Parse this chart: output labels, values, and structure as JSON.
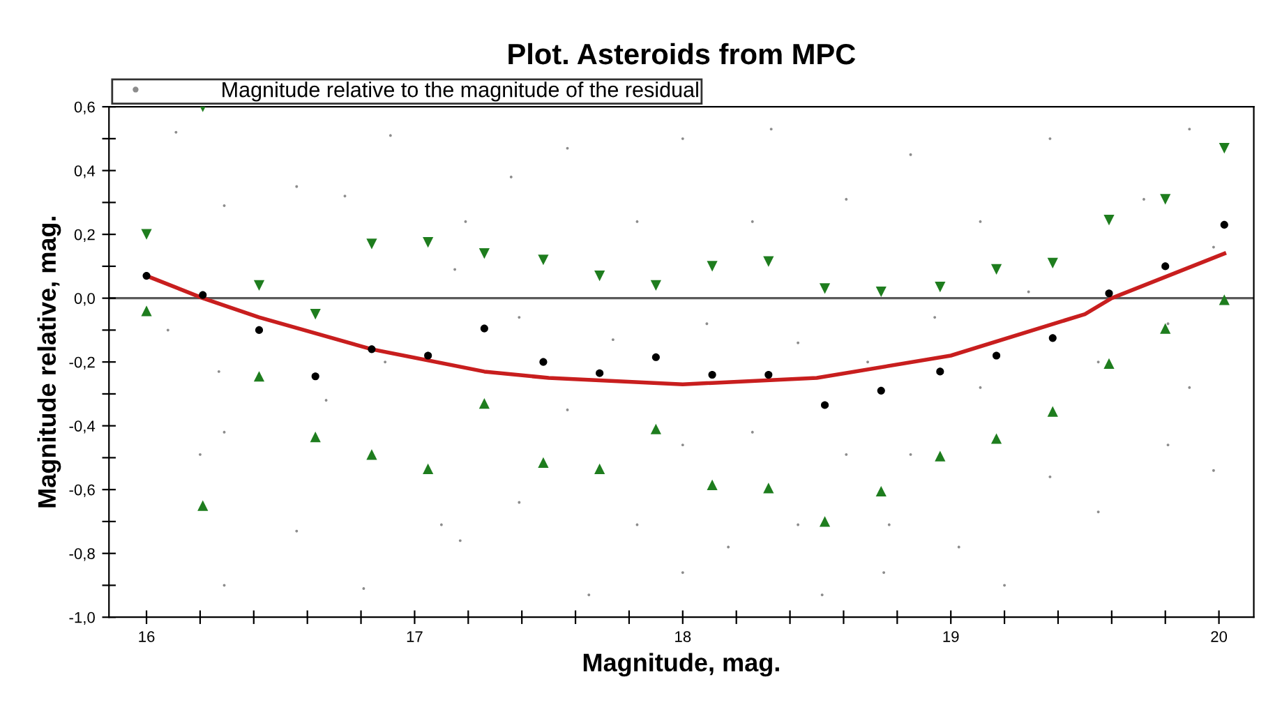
{
  "chart_data": {
    "type": "scatter",
    "title": "Plot. Asteroids from MPC",
    "xlabel": "Magnitude, mag.",
    "ylabel": "Magnitude relative, mag.",
    "xlim": [
      15.86,
      20.13
    ],
    "ylim": [
      -1.0,
      0.6
    ],
    "xticks": [
      16,
      {
        "value": 16.2,
        "label": null
      },
      {
        "value": 16.4,
        "label": null
      },
      {
        "value": 16.6,
        "label": null
      },
      {
        "value": 16.8,
        "label": null
      },
      17,
      {
        "value": 17.2,
        "label": null
      },
      {
        "value": 17.4,
        "label": null
      },
      {
        "value": 17.6,
        "label": null
      },
      {
        "value": 17.8,
        "label": null
      },
      18,
      {
        "value": 18.2,
        "label": null
      },
      {
        "value": 18.4,
        "label": null
      },
      {
        "value": 18.6,
        "label": null
      },
      {
        "value": 18.8,
        "label": null
      },
      19,
      {
        "value": 19.2,
        "label": null
      },
      {
        "value": 19.4,
        "label": null
      },
      {
        "value": 19.6,
        "label": null
      },
      {
        "value": 19.8,
        "label": null
      },
      20
    ],
    "yticks": [
      {
        "value": -1.0,
        "label": "-1,0"
      },
      {
        "value": -0.9,
        "label": null
      },
      {
        "value": -0.8,
        "label": "-0,8"
      },
      {
        "value": -0.7,
        "label": null
      },
      {
        "value": -0.6,
        "label": "-0,6"
      },
      {
        "value": -0.5,
        "label": null
      },
      {
        "value": -0.4,
        "label": "-0,4"
      },
      {
        "value": -0.3,
        "label": null
      },
      {
        "value": -0.2,
        "label": "-0,2"
      },
      {
        "value": -0.1,
        "label": null
      },
      {
        "value": 0.0,
        "label": "0,0"
      },
      {
        "value": 0.1,
        "label": null
      },
      {
        "value": 0.2,
        "label": "0,2"
      },
      {
        "value": 0.3,
        "label": null
      },
      {
        "value": 0.4,
        "label": "0,4"
      },
      {
        "value": 0.5,
        "label": null
      },
      {
        "value": 0.6,
        "label": "0,6"
      }
    ],
    "grid": false,
    "legend": "top left",
    "ref_lines": [
      {
        "axis": "y",
        "value": 0,
        "color": "#5a5a5a",
        "line_style": "solid"
      }
    ],
    "series": [
      {
        "name": "Magnitude relative to the magnitude of the residual",
        "marker": "circle",
        "color": "#8c8c8c",
        "x": [
          16.11,
          16.91,
          16.56,
          16.29,
          16.08,
          16.27,
          16.29,
          16.2,
          16.56,
          16.81,
          16.29,
          17.17,
          16.67,
          16.89,
          17.15,
          17.19,
          16.74,
          17.1,
          18.0,
          17.57,
          18.33,
          17.83,
          18.26,
          18.61,
          17.39,
          17.74,
          18.09,
          18.43,
          18.69,
          17.57,
          18.0,
          18.26,
          18.61,
          17.39,
          17.83,
          18.17,
          18.43,
          17.65,
          18.0,
          18.52,
          17.36,
          18.75,
          18.85,
          19.37,
          19.89,
          19.11,
          19.72,
          19.98,
          18.94,
          19.29,
          19.81,
          19.11,
          19.55,
          19.89,
          18.85,
          19.37,
          19.81,
          19.03,
          19.55,
          19.2,
          19.98,
          18.77
        ],
        "values": [
          0.52,
          0.51,
          0.35,
          0.29,
          -0.1,
          -0.23,
          -0.42,
          -0.49,
          -0.73,
          -0.91,
          -0.9,
          -0.76,
          -0.32,
          -0.2,
          0.09,
          0.24,
          0.32,
          -0.71,
          0.5,
          0.47,
          0.53,
          0.24,
          0.24,
          0.31,
          -0.06,
          -0.13,
          -0.08,
          -0.14,
          -0.2,
          -0.35,
          -0.46,
          -0.42,
          -0.49,
          -0.64,
          -0.71,
          -0.78,
          -0.71,
          -0.93,
          -0.86,
          -0.93,
          0.38,
          -0.86,
          0.45,
          0.5,
          0.53,
          0.24,
          0.31,
          0.16,
          -0.06,
          0.02,
          -0.08,
          -0.28,
          -0.2,
          -0.28,
          -0.49,
          -0.56,
          -0.46,
          -0.78,
          -0.67,
          -0.9,
          -0.54,
          -0.71
        ]
      },
      {
        "marker": "triangle_down",
        "color": "#1e7d1e",
        "x": [
          16.0,
          16.21,
          16.42,
          16.63,
          16.84,
          17.05,
          17.26,
          17.48,
          17.69,
          17.9,
          18.11,
          18.32,
          18.53,
          18.74,
          18.96,
          19.17,
          19.38,
          19.59,
          19.8,
          20.02
        ],
        "values": [
          0.2,
          0.6,
          0.04,
          -0.05,
          0.17,
          0.175,
          0.14,
          0.12,
          0.07,
          0.04,
          0.1,
          0.115,
          0.03,
          0.02,
          0.035,
          0.09,
          0.11,
          0.245,
          0.31,
          0.47
        ]
      },
      {
        "marker": "triangle",
        "color": "#1e7d1e",
        "x": [
          16.0,
          16.21,
          16.42,
          16.63,
          16.84,
          17.05,
          17.26,
          17.48,
          17.69,
          17.9,
          18.11,
          18.32,
          18.53,
          18.74,
          18.96,
          19.17,
          19.38,
          19.59,
          19.8,
          20.02
        ],
        "values": [
          -0.04,
          -0.65,
          -0.245,
          -0.435,
          -0.49,
          -0.535,
          -0.33,
          -0.515,
          -0.535,
          -0.41,
          -0.585,
          -0.595,
          -0.7,
          -0.605,
          -0.495,
          -0.44,
          -0.355,
          -0.205,
          -0.095,
          -0.005
        ]
      },
      {
        "marker": "circle",
        "color": "#000000",
        "x": [
          16.0,
          16.21,
          16.42,
          16.63,
          16.84,
          17.05,
          17.26,
          17.48,
          17.69,
          17.9,
          18.11,
          18.32,
          18.53,
          18.74,
          18.96,
          19.17,
          19.38,
          19.59,
          19.8,
          20.02
        ],
        "values": [
          0.07,
          0.01,
          -0.1,
          -0.245,
          -0.16,
          -0.18,
          -0.095,
          -0.2,
          -0.235,
          -0.185,
          -0.24,
          -0.24,
          -0.335,
          -0.29,
          -0.23,
          -0.18,
          -0.125,
          0.015,
          0.1,
          0.23
        ]
      },
      {
        "type": "line",
        "marker": "none",
        "line_style": "solid",
        "color": "#c81e1e",
        "x": [
          16.0,
          16.21,
          16.42,
          16.84,
          17.26,
          17.5,
          18.0,
          18.5,
          19.0,
          19.5,
          19.6,
          20.02
        ],
        "values": [
          0.07,
          0.0,
          -0.06,
          -0.16,
          -0.23,
          -0.25,
          -0.27,
          -0.25,
          -0.18,
          -0.05,
          0.0,
          0.14
        ]
      }
    ]
  }
}
